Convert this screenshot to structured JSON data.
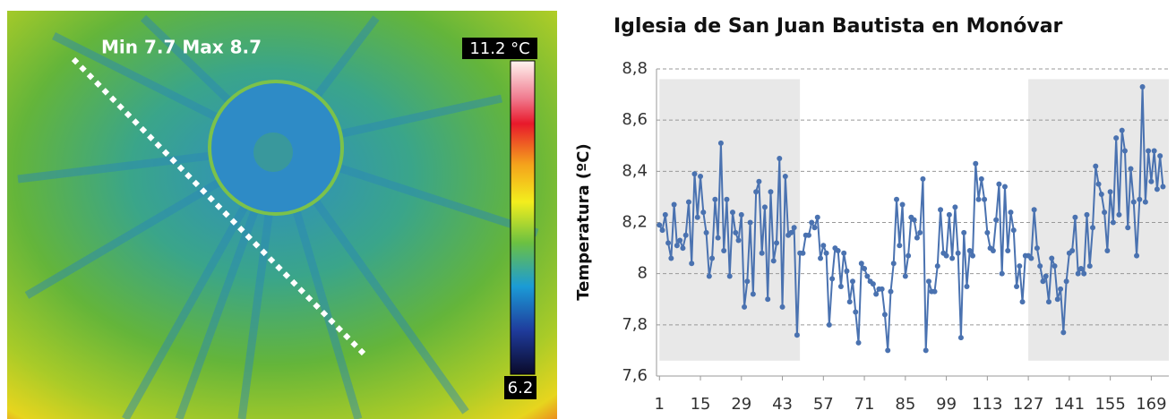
{
  "thermal_image": {
    "annotation": "Min 7.7 Max 8.7",
    "scale_max": "11.2 °C",
    "scale_min": "6.2"
  },
  "chart_data": {
    "type": "line",
    "title": "Iglesia de San Juan Bautista en Monóvar",
    "y_label": "Temperatura (ºC)",
    "color": "#4a72b0",
    "shade_color": "#e8e8e8",
    "shaded_regions": [
      {
        "x": [
          1,
          49
        ],
        "y": [
          7.66,
          8.76
        ]
      },
      {
        "x": [
          127,
          175
        ],
        "y": [
          7.66,
          8.76
        ]
      }
    ],
    "grid": true,
    "xlim": [
      0,
      175
    ],
    "xticks": [
      1,
      15,
      29,
      43,
      57,
      71,
      85,
      99,
      113,
      127,
      141,
      155,
      169
    ],
    "ylim": [
      7.6,
      8.8
    ],
    "yticks": [
      {
        "value": 7.6,
        "label": "7,6"
      },
      {
        "value": 7.8,
        "label": "7,8"
      },
      {
        "value": 8,
        "label": "8"
      },
      {
        "value": 8.2,
        "label": "8,2"
      },
      {
        "value": 8.4,
        "label": "8,4"
      },
      {
        "value": 8.6,
        "label": "8,6"
      },
      {
        "value": 8.8,
        "label": "8,8"
      }
    ],
    "x": [
      1,
      2,
      3,
      4,
      5,
      6,
      7,
      8,
      9,
      10,
      11,
      12,
      13,
      14,
      15,
      16,
      17,
      18,
      19,
      20,
      21,
      22,
      23,
      24,
      25,
      26,
      27,
      28,
      29,
      30,
      31,
      32,
      33,
      34,
      35,
      36,
      37,
      38,
      39,
      40,
      41,
      42,
      43,
      44,
      45,
      46,
      47,
      48,
      49,
      50,
      51,
      52,
      53,
      54,
      55,
      56,
      57,
      58,
      59,
      60,
      61,
      62,
      63,
      64,
      65,
      66,
      67,
      68,
      69,
      70,
      71,
      72,
      73,
      74,
      75,
      76,
      77,
      78,
      79,
      80,
      81,
      82,
      83,
      84,
      85,
      86,
      87,
      88,
      89,
      90,
      91,
      92,
      93,
      94,
      95,
      96,
      97,
      98,
      99,
      100,
      101,
      102,
      103,
      104,
      105,
      106,
      107,
      108,
      109,
      110,
      111,
      112,
      113,
      114,
      115,
      116,
      117,
      118,
      119,
      120,
      121,
      122,
      123,
      124,
      125,
      126,
      127,
      128,
      129,
      130,
      131,
      132,
      133,
      134,
      135,
      136,
      137,
      138,
      139,
      140,
      141,
      142,
      143,
      144,
      145,
      146,
      147,
      148,
      149,
      150,
      151,
      152,
      153,
      154,
      155,
      156,
      157,
      158,
      159,
      160,
      161,
      162,
      163,
      164,
      165,
      166,
      167,
      168,
      169,
      170,
      171,
      172,
      173
    ],
    "values": [
      8.19,
      8.17,
      8.23,
      8.12,
      8.06,
      8.27,
      8.11,
      8.13,
      8.1,
      8.15,
      8.28,
      8.04,
      8.39,
      8.22,
      8.38,
      8.24,
      8.16,
      7.99,
      8.06,
      8.29,
      8.14,
      8.51,
      8.09,
      8.29,
      7.99,
      8.24,
      8.16,
      8.13,
      8.23,
      7.87,
      7.97,
      8.2,
      7.92,
      8.32,
      8.36,
      8.08,
      8.26,
      7.9,
      8.32,
      8.05,
      8.12,
      8.45,
      7.87,
      8.38,
      8.15,
      8.16,
      8.18,
      7.76,
      8.08,
      8.08,
      8.15,
      8.15,
      8.2,
      8.18,
      8.22,
      8.06,
      8.11,
      8.08,
      7.8,
      7.98,
      8.1,
      8.09,
      7.95,
      8.08,
      8.01,
      7.89,
      7.97,
      7.85,
      7.73,
      8.04,
      8.02,
      7.99,
      7.97,
      7.96,
      7.92,
      7.94,
      7.94,
      7.84,
      7.7,
      7.93,
      8.04,
      8.29,
      8.11,
      8.27,
      7.99,
      8.07,
      8.22,
      8.21,
      8.14,
      8.16,
      8.37,
      7.7,
      7.97,
      7.93,
      7.93,
      8.03,
      8.25,
      8.08,
      8.07,
      8.23,
      8.06,
      8.26,
      8.08,
      7.75,
      8.16,
      7.95,
      8.09,
      8.07,
      8.43,
      8.29,
      8.37,
      8.29,
      8.16,
      8.1,
      8.09,
      8.21,
      8.35,
      8.0,
      8.34,
      8.09,
      8.24,
      8.17,
      7.95,
      8.03,
      7.89,
      8.07,
      8.07,
      8.06,
      8.25,
      8.1,
      8.03,
      7.97,
      7.99,
      7.89,
      8.06,
      8.03,
      7.9,
      7.94,
      7.77,
      7.97,
      8.08,
      8.09,
      8.22,
      8.0,
      8.02,
      8.0,
      8.23,
      8.03,
      8.18,
      8.42,
      8.35,
      8.31,
      8.24,
      8.09,
      8.32,
      8.2,
      8.53,
      8.23,
      8.56,
      8.48,
      8.18,
      8.41,
      8.28,
      8.07,
      8.29,
      8.73,
      8.28,
      8.48,
      8.36,
      8.48,
      8.33,
      8.46,
      8.34
    ]
  }
}
